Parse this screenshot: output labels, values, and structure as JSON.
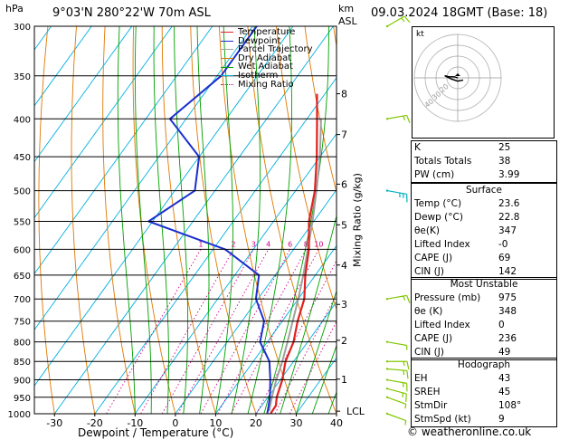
{
  "header": {
    "hpa_label": "hPa",
    "location": "9°03'N  280°22'W  70m  ASL",
    "km_label": "km",
    "asl_label": "ASL",
    "datetime": "09.03.2024  18GMT  (Base: 18)"
  },
  "colors": {
    "temperature": "#e02020",
    "dewpoint": "#1a2fd0",
    "parcel": "#a0a0a0",
    "dry_adiabat": "#e07800",
    "wet_adiabat": "#00a000",
    "isotherm": "#00b0e0",
    "mixing_ratio": "#d0008a",
    "wind_barb": "#80c800",
    "wind_barb_cyan": "#00b0c0"
  },
  "legend": [
    {
      "label": "Temperature",
      "color": "#e02020",
      "style": "solid"
    },
    {
      "label": "Dewpoint",
      "color": "#1a2fd0",
      "style": "solid"
    },
    {
      "label": "Parcel Trajectory",
      "color": "#a0a0a0",
      "style": "solid"
    },
    {
      "label": "Dry Adiabat",
      "color": "#e07800",
      "style": "solid"
    },
    {
      "label": "Wet Adiabat",
      "color": "#00a000",
      "style": "solid"
    },
    {
      "label": "Isotherm",
      "color": "#00b0e0",
      "style": "solid"
    },
    {
      "label": "Mixing Ratio",
      "color": "#d0008a",
      "style": "dotted"
    }
  ],
  "chart_data": {
    "type": "line",
    "subtype": "skew-T log-P",
    "xlabel": "Dewpoint / Temperature (°C)",
    "ylabel": "hPa",
    "right_label": "Mixing Ratio (g/kg)",
    "xlim": [
      -35,
      40
    ],
    "ylim": [
      1000,
      300
    ],
    "x_ticks": [
      -30,
      -20,
      -10,
      0,
      10,
      20,
      30,
      40
    ],
    "pressure_levels": [
      300,
      350,
      400,
      450,
      500,
      550,
      600,
      650,
      700,
      750,
      800,
      850,
      900,
      950,
      1000
    ],
    "km_ticks": [
      {
        "km": "8",
        "p": 370
      },
      {
        "km": "7",
        "p": 420
      },
      {
        "km": "6",
        "p": 490
      },
      {
        "km": "5",
        "p": 556
      },
      {
        "km": "4",
        "p": 630
      },
      {
        "km": "3",
        "p": 712
      },
      {
        "km": "2",
        "p": 796
      },
      {
        "km": "1",
        "p": 898
      },
      {
        "km": "LCL",
        "p": 992
      }
    ],
    "mixing_ratio_labels": [
      {
        "label": "1",
        "w": 1
      },
      {
        "label": "2",
        "w": 2
      },
      {
        "label": "3",
        "w": 3
      },
      {
        "label": "4",
        "w": 4
      },
      {
        "label": "6",
        "w": 6
      },
      {
        "label": "8",
        "w": 8
      },
      {
        "label": "10",
        "w": 10
      },
      {
        "label": "15",
        "w": 15
      },
      {
        "label": "20",
        "w": 20
      },
      {
        "label": "25",
        "w": 25
      }
    ],
    "series": [
      {
        "name": "Temperature",
        "key": "temperature",
        "points": [
          [
            1000,
            23.6
          ],
          [
            975,
            23.5
          ],
          [
            950,
            22.2
          ],
          [
            900,
            20.5
          ],
          [
            850,
            18.0
          ],
          [
            800,
            16.5
          ],
          [
            750,
            13.8
          ],
          [
            700,
            11.5
          ],
          [
            650,
            7.5
          ],
          [
            600,
            3.8
          ],
          [
            550,
            -1.2
          ],
          [
            500,
            -5.2
          ],
          [
            450,
            -10.8
          ],
          [
            400,
            -17.5
          ],
          [
            370,
            -22.0
          ]
        ]
      },
      {
        "name": "Dewpoint",
        "key": "dewpoint",
        "points": [
          [
            1000,
            22.8
          ],
          [
            975,
            21.7
          ],
          [
            950,
            20.5
          ],
          [
            900,
            17.5
          ],
          [
            850,
            14.0
          ],
          [
            800,
            8.2
          ],
          [
            750,
            5.5
          ],
          [
            700,
            -0.5
          ],
          [
            650,
            -4.0
          ],
          [
            600,
            -17.0
          ],
          [
            550,
            -41.0
          ],
          [
            500,
            -35.0
          ],
          [
            450,
            -40.0
          ],
          [
            400,
            -54.0
          ],
          [
            350,
            -49.0
          ],
          [
            300,
            -49.0
          ]
        ]
      },
      {
        "name": "Parcel Trajectory",
        "key": "parcel",
        "points": [
          [
            992,
            22.8
          ],
          [
            950,
            21.0
          ],
          [
            900,
            19.0
          ],
          [
            850,
            17.2
          ],
          [
            800,
            15.0
          ],
          [
            750,
            12.6
          ],
          [
            700,
            10.0
          ],
          [
            650,
            7.0
          ],
          [
            600,
            3.5
          ],
          [
            550,
            -0.3
          ],
          [
            500,
            -4.8
          ],
          [
            450,
            -10.0
          ],
          [
            400,
            -16.5
          ]
        ]
      }
    ],
    "wind_barbs": [
      {
        "p": 300,
        "dir": 60,
        "spd": 10
      },
      {
        "p": 400,
        "dir": 80,
        "spd": 10
      },
      {
        "p": 500,
        "dir": 100,
        "spd": 15
      },
      {
        "p": 700,
        "dir": 80,
        "spd": 10
      },
      {
        "p": 800,
        "dir": 100,
        "spd": 5
      },
      {
        "p": 850,
        "dir": 90,
        "spd": 10
      },
      {
        "p": 870,
        "dir": 95,
        "spd": 10
      },
      {
        "p": 900,
        "dir": 100,
        "spd": 10
      },
      {
        "p": 925,
        "dir": 105,
        "spd": 10
      },
      {
        "p": 950,
        "dir": 110,
        "spd": 5
      },
      {
        "p": 1000,
        "dir": 110,
        "spd": 5
      }
    ]
  },
  "hodograph": {
    "label": "kt",
    "ring_labels": [
      "40",
      "30",
      "20"
    ],
    "trace": [
      [
        0,
        0
      ],
      [
        -3,
        -1
      ],
      [
        -8,
        -1
      ],
      [
        -12,
        -2
      ],
      [
        -6,
        1
      ],
      [
        0,
        3
      ],
      [
        5,
        2
      ]
    ]
  },
  "indices": [
    {
      "key": "K",
      "value": "25"
    },
    {
      "key": "Totals Totals",
      "value": "38"
    },
    {
      "key": "PW (cm)",
      "value": "3.99"
    }
  ],
  "surface": {
    "title": "Surface",
    "rows": [
      {
        "key": "Temp (°C)",
        "value": "23.6"
      },
      {
        "key": "Dewp (°C)",
        "value": "22.8"
      },
      {
        "key": "θe(K)",
        "value": "347"
      },
      {
        "key": "Lifted Index",
        "value": "-0"
      },
      {
        "key": "CAPE (J)",
        "value": "69"
      },
      {
        "key": "CIN (J)",
        "value": "142"
      }
    ]
  },
  "most_unstable": {
    "title": "Most Unstable",
    "rows": [
      {
        "key": "Pressure (mb)",
        "value": "975"
      },
      {
        "key": "θe (K)",
        "value": "348"
      },
      {
        "key": "Lifted Index",
        "value": "0"
      },
      {
        "key": "CAPE (J)",
        "value": "236"
      },
      {
        "key": "CIN (J)",
        "value": "49"
      }
    ]
  },
  "hodograph_table": {
    "title": "Hodograph",
    "rows": [
      {
        "key": "EH",
        "value": "43"
      },
      {
        "key": "SREH",
        "value": "45"
      },
      {
        "key": "StmDir",
        "value": "108°"
      },
      {
        "key": "StmSpd (kt)",
        "value": "9"
      }
    ]
  },
  "footer": {
    "credit": "© weatheronline.co.uk"
  }
}
